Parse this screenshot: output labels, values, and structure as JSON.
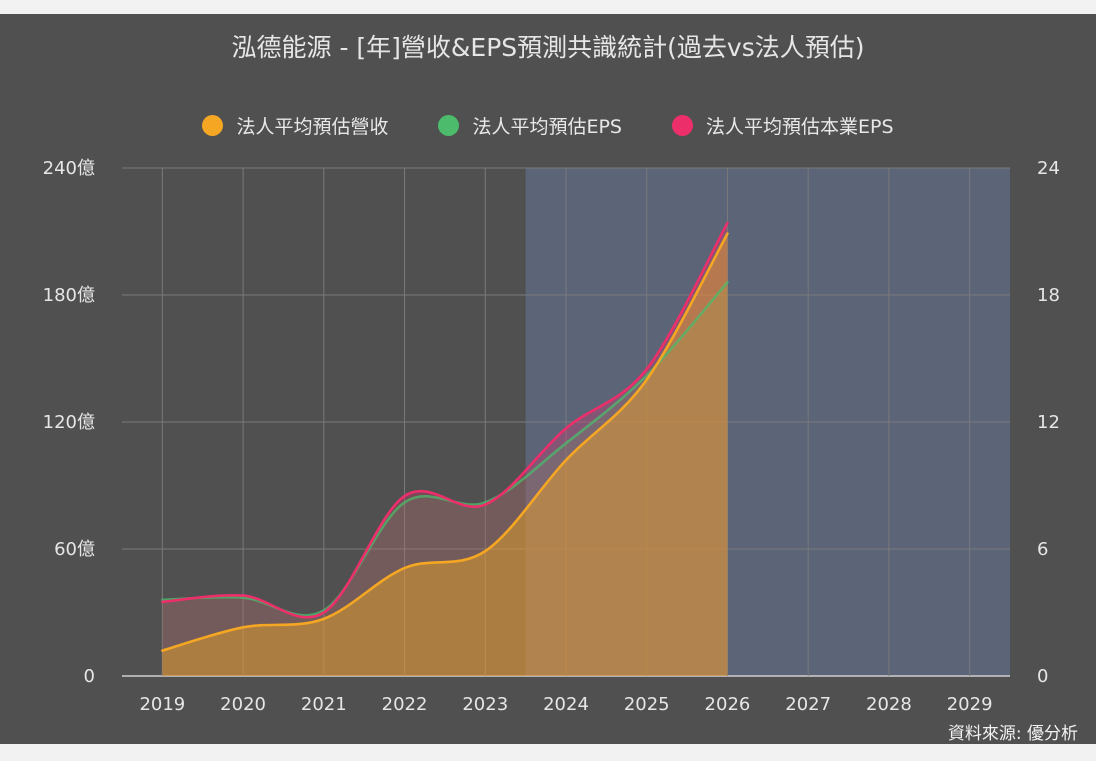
{
  "chart_data": {
    "type": "line",
    "title": "泓德能源 - [年]營收&EPS預測共識統計(過去vs法人預估)",
    "categories": [
      "2019",
      "2020",
      "2021",
      "2022",
      "2023",
      "2024",
      "2025",
      "2026",
      "2027",
      "2028",
      "2029"
    ],
    "forecast_shade_range": [
      "2024",
      "2029"
    ],
    "left_axis": {
      "ticks": [
        "0",
        "60億",
        "120億",
        "180億",
        "240億"
      ],
      "ylim": [
        0,
        240
      ]
    },
    "right_axis": {
      "ticks": [
        "0",
        "6",
        "12",
        "18",
        "24"
      ],
      "ylim": [
        0,
        24
      ]
    },
    "series": [
      {
        "name": "法人平均預估營收",
        "color": "#f5a623",
        "axis": "left",
        "values": [
          12,
          23,
          27,
          51,
          59,
          102,
          140,
          209,
          null,
          null,
          null
        ]
      },
      {
        "name": "法人平均預估EPS",
        "color": "#4cbb6c",
        "axis": "right",
        "values": [
          3.6,
          3.7,
          3.1,
          8.2,
          8.2,
          11.0,
          14.2,
          18.6,
          null,
          null,
          null
        ]
      },
      {
        "name": "法人平均預估本業EPS",
        "color": "#ec2f6b",
        "axis": "right",
        "values": [
          3.5,
          3.8,
          3.0,
          8.5,
          8.1,
          11.7,
          14.5,
          21.4,
          null,
          null,
          null
        ]
      }
    ],
    "grid": true,
    "legend_position": "top"
  },
  "source_text": "資料來源: 優分析",
  "colors": {
    "background": "#505050",
    "forecast_shade": "#5c6478",
    "grid": "#7a7a7a"
  }
}
